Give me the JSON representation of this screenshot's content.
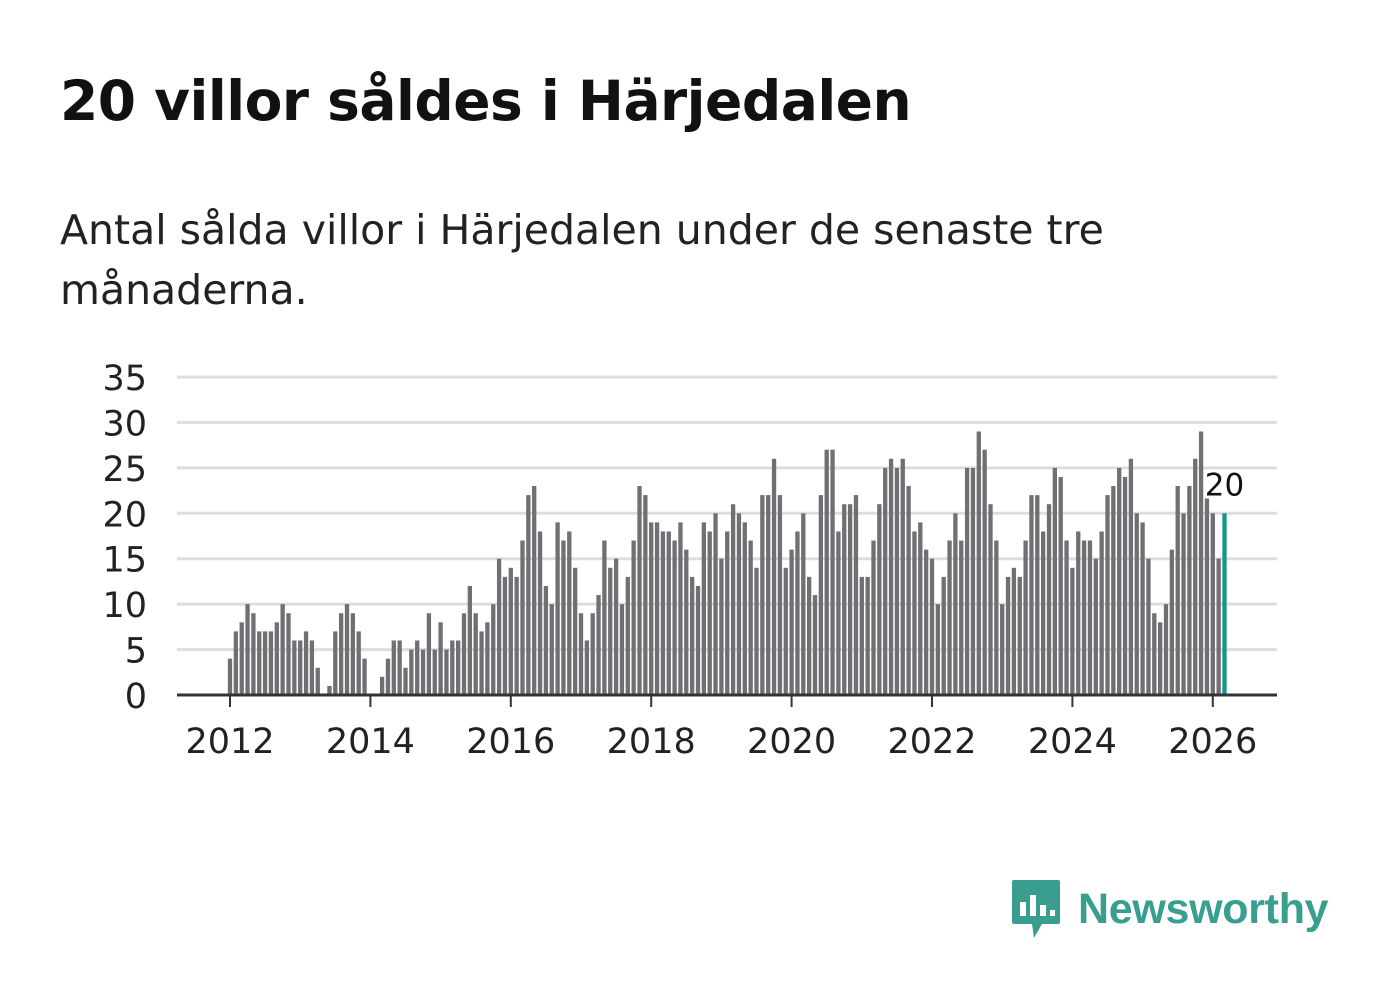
{
  "header": {
    "title": "20 villor såldes i Härjedalen",
    "subtitle": "Antal sålda villor i Härjedalen under de senaste tre månaderna."
  },
  "branding": {
    "logo_text": "Newsworthy",
    "logo_color": "#3a9e8f"
  },
  "colors": {
    "bar": "#6f6f74",
    "highlight": "#14958c",
    "grid": "#dddddd",
    "axis": "#333333",
    "text": "#222222"
  },
  "chart_data": {
    "type": "bar",
    "title": "20 villor såldes i Härjedalen",
    "subtitle": "Antal sålda villor i Härjedalen under de senaste tre månaderna.",
    "xlabel": "",
    "ylabel": "",
    "ylim": [
      0,
      35
    ],
    "yticks": [
      0,
      5,
      10,
      15,
      20,
      25,
      30,
      35
    ],
    "xticks": [
      "2012",
      "2014",
      "2016",
      "2018",
      "2020",
      "2022",
      "2024",
      "2026"
    ],
    "x_start": "2012-01",
    "frequency": "monthly",
    "grid": true,
    "highlight_label": "20",
    "values": [
      4,
      7,
      8,
      10,
      9,
      7,
      7,
      7,
      8,
      10,
      9,
      6,
      6,
      7,
      6,
      3,
      0,
      1,
      7,
      9,
      10,
      9,
      7,
      4,
      0,
      0,
      2,
      4,
      6,
      6,
      3,
      5,
      6,
      5,
      9,
      5,
      8,
      5,
      6,
      6,
      9,
      12,
      9,
      7,
      8,
      10,
      15,
      13,
      14,
      13,
      17,
      22,
      23,
      18,
      12,
      10,
      19,
      17,
      18,
      14,
      9,
      6,
      9,
      11,
      17,
      14,
      15,
      10,
      13,
      17,
      23,
      22,
      19,
      19,
      18,
      18,
      17,
      19,
      16,
      13,
      12,
      19,
      18,
      20,
      15,
      18,
      21,
      20,
      19,
      17,
      14,
      22,
      22,
      26,
      22,
      14,
      16,
      18,
      20,
      13,
      11,
      22,
      27,
      27,
      18,
      21,
      21,
      22,
      13,
      13,
      17,
      21,
      25,
      26,
      25,
      26,
      23,
      18,
      19,
      16,
      15,
      10,
      13,
      17,
      20,
      17,
      25,
      25,
      29,
      27,
      21,
      17,
      10,
      13,
      14,
      13,
      17,
      22,
      22,
      18,
      21,
      25,
      24,
      17,
      14,
      18,
      17,
      17,
      15,
      18,
      22,
      23,
      25,
      24,
      26,
      20,
      19,
      15,
      9,
      8,
      10,
      16,
      23,
      20,
      23,
      26,
      29,
      22,
      20,
      15,
      20
    ]
  }
}
